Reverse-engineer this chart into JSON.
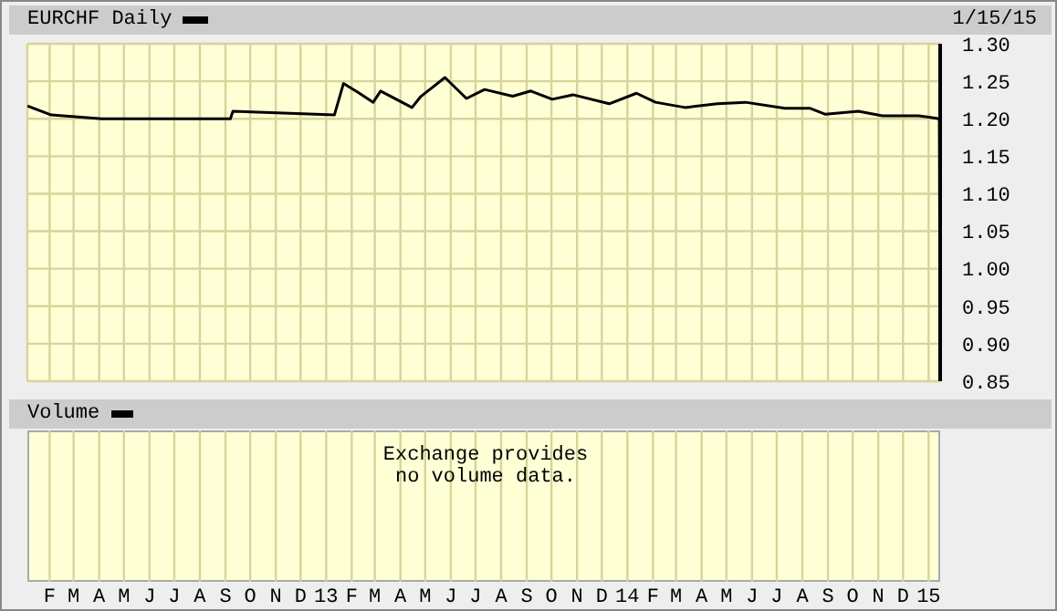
{
  "chart_data": [
    {
      "type": "line",
      "annotations": [
        "1/15/15"
      ],
      "legend": "top left",
      "grid": true,
      "marker": "none",
      "series": [
        {
          "name": "EURCHF Daily",
          "color": "#000000",
          "axis": "y2",
          "x": [
            "2012-01-05",
            "2012-02-03",
            "2012-04-04",
            "2012-09-07",
            "2012-09-10",
            "2013-01-11",
            "2013-01-22",
            "2013-02-09",
            "2013-02-27",
            "2013-03-08",
            "2013-04-15",
            "2013-04-26",
            "2013-05-25",
            "2013-06-20",
            "2013-07-12",
            "2013-08-15",
            "2013-09-06",
            "2013-10-02",
            "2013-10-27",
            "2013-12-10",
            "2014-01-12",
            "2014-02-04",
            "2014-03-12",
            "2014-04-20",
            "2014-05-24",
            "2014-07-11",
            "2014-08-10",
            "2014-08-29",
            "2014-10-08",
            "2014-11-06",
            "2014-12-20",
            "2015-01-14",
            "2015-01-15"
          ],
          "values": [
            1.217,
            1.205,
            1.2,
            1.2,
            1.21,
            1.205,
            1.247,
            1.235,
            1.222,
            1.237,
            1.215,
            1.23,
            1.255,
            1.227,
            1.239,
            1.23,
            1.237,
            1.226,
            1.232,
            1.22,
            1.234,
            1.222,
            1.215,
            1.22,
            1.222,
            1.214,
            1.214,
            1.206,
            1.21,
            1.204,
            1.204,
            1.2,
            0.85
          ]
        }
      ],
      "xlim": [
        "2012-01-05",
        "2015-01-15"
      ],
      "xticks": [
        {
          "value": "2012-02-01",
          "label": "F"
        },
        {
          "value": "2012-03-01",
          "label": "M"
        },
        {
          "value": "2012-04-01",
          "label": "A"
        },
        {
          "value": "2012-05-01",
          "label": "M"
        },
        {
          "value": "2012-06-01",
          "label": "J"
        },
        {
          "value": "2012-07-01",
          "label": "J"
        },
        {
          "value": "2012-08-01",
          "label": "A"
        },
        {
          "value": "2012-09-01",
          "label": "S"
        },
        {
          "value": "2012-10-01",
          "label": "O"
        },
        {
          "value": "2012-11-01",
          "label": "N"
        },
        {
          "value": "2012-12-01",
          "label": "D"
        },
        {
          "value": "2013-01-01",
          "label": "13"
        },
        {
          "value": "2013-02-01",
          "label": "F"
        },
        {
          "value": "2013-03-01",
          "label": "M"
        },
        {
          "value": "2013-04-01",
          "label": "A"
        },
        {
          "value": "2013-05-01",
          "label": "M"
        },
        {
          "value": "2013-06-01",
          "label": "J"
        },
        {
          "value": "2013-07-01",
          "label": "J"
        },
        {
          "value": "2013-08-01",
          "label": "A"
        },
        {
          "value": "2013-09-01",
          "label": "S"
        },
        {
          "value": "2013-10-01",
          "label": "O"
        },
        {
          "value": "2013-11-01",
          "label": "N"
        },
        {
          "value": "2013-12-01",
          "label": "D"
        },
        {
          "value": "2014-01-01",
          "label": "14"
        },
        {
          "value": "2014-02-01",
          "label": "F"
        },
        {
          "value": "2014-03-01",
          "label": "M"
        },
        {
          "value": "2014-04-01",
          "label": "A"
        },
        {
          "value": "2014-05-01",
          "label": "M"
        },
        {
          "value": "2014-06-01",
          "label": "J"
        },
        {
          "value": "2014-07-01",
          "label": "J"
        },
        {
          "value": "2014-08-01",
          "label": "A"
        },
        {
          "value": "2014-09-01",
          "label": "S"
        },
        {
          "value": "2014-10-01",
          "label": "O"
        },
        {
          "value": "2014-11-01",
          "label": "N"
        },
        {
          "value": "2014-12-01",
          "label": "D"
        },
        {
          "value": "2015-01-01",
          "label": "15"
        }
      ],
      "y2lim": [
        0.85,
        1.3
      ],
      "y2ticks": [
        {
          "value": 1.3,
          "label": "1.30"
        },
        {
          "value": 1.25,
          "label": "1.25"
        },
        {
          "value": 1.2,
          "label": "1.20"
        },
        {
          "value": 1.15,
          "label": "1.15"
        },
        {
          "value": 1.1,
          "label": "1.10"
        },
        {
          "value": 1.05,
          "label": "1.05"
        },
        {
          "value": 1.0,
          "label": "1.00"
        },
        {
          "value": 0.95,
          "label": "0.95"
        },
        {
          "value": 0.9,
          "label": "0.90"
        },
        {
          "value": 0.85,
          "label": "0.85"
        }
      ]
    },
    {
      "type": "other",
      "title": "Volume",
      "annotations": [
        "Exchange provides no volume data."
      ]
    }
  ]
}
